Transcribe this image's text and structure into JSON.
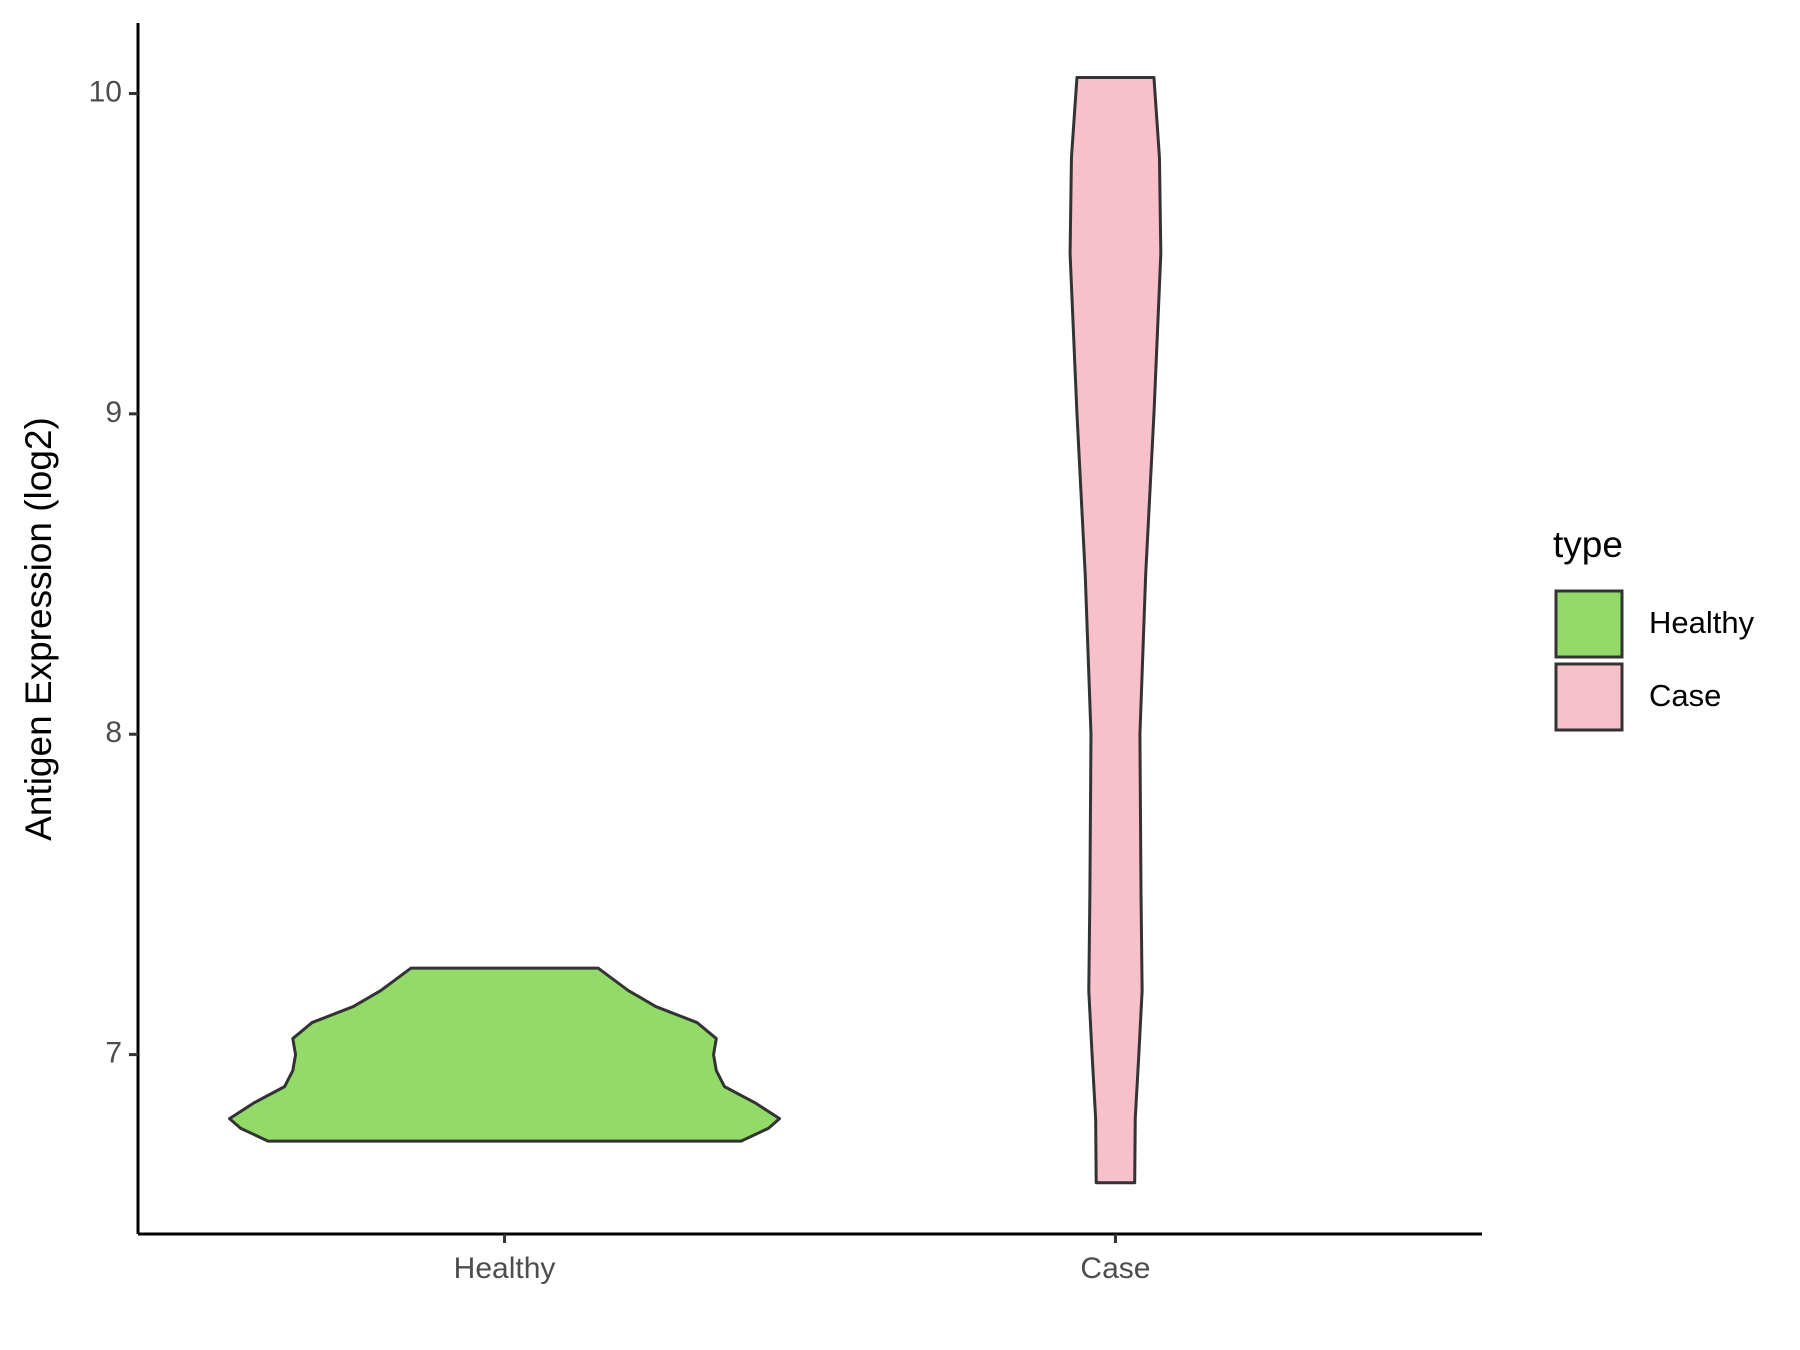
{
  "chart_data": {
    "type": "violin",
    "y_label": "Antigen Expression (log2)",
    "legend_title": "type",
    "categories": [
      "Healthy",
      "Case"
    ],
    "series": [
      {
        "name": "Healthy",
        "color": "#93db69",
        "y": [
          6.73,
          6.77,
          6.8,
          6.85,
          6.9,
          6.95,
          7.0,
          7.05,
          7.1,
          7.15,
          7.2,
          7.27
        ],
        "density": [
          0.86,
          0.96,
          1.0,
          0.91,
          0.8,
          0.77,
          0.76,
          0.77,
          0.7,
          0.55,
          0.45,
          0.34
        ]
      },
      {
        "name": "Case",
        "color": "#f7c0cb",
        "y": [
          6.6,
          6.8,
          7.0,
          7.2,
          7.5,
          8.0,
          8.5,
          9.0,
          9.5,
          9.8,
          10.05
        ],
        "density": [
          0.07,
          0.072,
          0.085,
          0.097,
          0.093,
          0.089,
          0.11,
          0.14,
          0.165,
          0.16,
          0.14
        ]
      }
    ],
    "ylim": [
      6.44,
      10.22
    ],
    "yticks": [
      7,
      8,
      9,
      10
    ],
    "grid": false,
    "legend": "right"
  }
}
